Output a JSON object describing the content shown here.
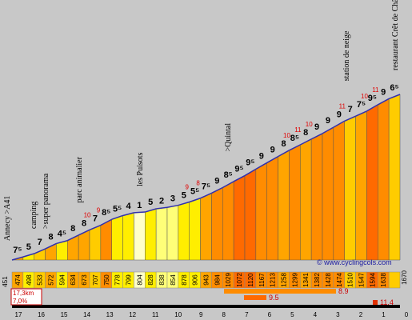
{
  "chart_data": {
    "type": "area",
    "title": "",
    "xlabel": "",
    "ylabel": "",
    "x_reversed_km": [
      17,
      16,
      15,
      14,
      13,
      12,
      11,
      10,
      9,
      8,
      7,
      6,
      5,
      4,
      3,
      2,
      1,
      0
    ],
    "segments": [
      {
        "elev": 474,
        "grade": "7⁵",
        "max": ""
      },
      {
        "elev": 498,
        "grade": "5",
        "max": ""
      },
      {
        "elev": 533,
        "grade": "7",
        "max": ""
      },
      {
        "elev": 572,
        "grade": "8",
        "max": ""
      },
      {
        "elev": 594,
        "grade": "4⁵",
        "max": ""
      },
      {
        "elev": 634,
        "grade": "8",
        "max": ""
      },
      {
        "elev": 673,
        "grade": "8",
        "max": "10"
      },
      {
        "elev": 707,
        "grade": "7",
        "max": "9"
      },
      {
        "elev": 750,
        "grade": "8⁵",
        "max": ""
      },
      {
        "elev": 778,
        "grade": "5⁵",
        "max": ""
      },
      {
        "elev": 799,
        "grade": "4",
        "max": ""
      },
      {
        "elev": 804,
        "grade": "1",
        "max": ""
      },
      {
        "elev": 828,
        "grade": "5",
        "max": ""
      },
      {
        "elev": 838,
        "grade": "2",
        "max": ""
      },
      {
        "elev": 854,
        "grade": "3",
        "max": ""
      },
      {
        "elev": 878,
        "grade": "5",
        "max": "9"
      },
      {
        "elev": 906,
        "grade": "5⁵",
        "max": "8"
      },
      {
        "elev": 943,
        "grade": "7⁵",
        "max": ""
      },
      {
        "elev": 984,
        "grade": "9",
        "max": ""
      },
      {
        "elev": 1029,
        "grade": "8⁵",
        "max": ""
      },
      {
        "elev": 1072,
        "grade": "9⁵",
        "max": ""
      },
      {
        "elev": 1120,
        "grade": "9⁵",
        "max": ""
      },
      {
        "elev": 1167,
        "grade": "9",
        "max": ""
      },
      {
        "elev": 1213,
        "grade": "9",
        "max": ""
      },
      {
        "elev": 1258,
        "grade": "8",
        "max": "10"
      },
      {
        "elev": 1299,
        "grade": "8⁵",
        "max": "11"
      },
      {
        "elev": 1341,
        "grade": "8",
        "max": "10"
      },
      {
        "elev": 1382,
        "grade": "9",
        "max": ""
      },
      {
        "elev": 1428,
        "grade": "9",
        "max": ""
      },
      {
        "elev": 1474,
        "grade": "9",
        "max": "11"
      },
      {
        "elev": 1510,
        "grade": "7",
        "max": ""
      },
      {
        "elev": 1547,
        "grade": "7⁵",
        "max": "10"
      },
      {
        "elev": 1594,
        "grade": "9⁵",
        "max": "11"
      },
      {
        "elev": 1638,
        "grade": "9",
        "max": ""
      },
      {
        "elev": 1670,
        "grade": "6⁵",
        "max": ""
      }
    ],
    "start_elev": "451",
    "end_elev": "1670",
    "places": [
      "Annecy >A41",
      "camping",
      ">super panorama",
      "parc animalier",
      "les Puisots",
      ">Quintal",
      "station de neige",
      "restaurant Crêt de Châtillon"
    ],
    "summary": {
      "distance": "17,3km",
      "avg": "7,0%"
    },
    "credit": "© www.cyclingcols.com",
    "steep_sections": [
      "8.9",
      "9.5",
      "11.4"
    ]
  }
}
